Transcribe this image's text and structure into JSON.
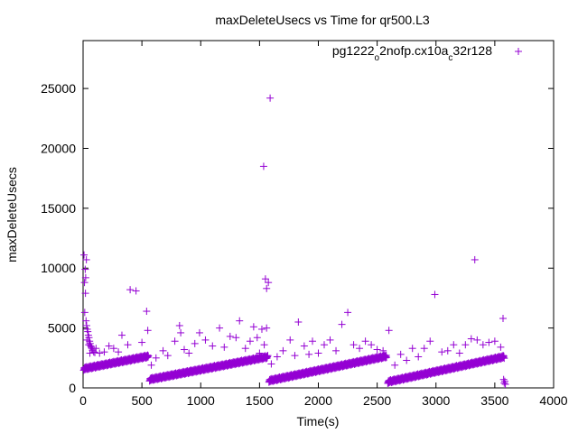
{
  "chart_data": {
    "type": "scatter",
    "title": "maxDeleteUsecs vs Time for qr500.L3",
    "xlabel": "Time(s)",
    "ylabel": "maxDeleteUsecs",
    "xlim": [
      0,
      4000
    ],
    "ylim": [
      0,
      29000
    ],
    "x_ticks": [
      0,
      500,
      1000,
      1500,
      2000,
      2500,
      3000,
      3500,
      4000
    ],
    "y_ticks": [
      0,
      5000,
      10000,
      15000,
      20000,
      25000
    ],
    "grid": false,
    "legend_position": "top-right",
    "legend": {
      "parts": [
        {
          "text": "pg1222",
          "sub": false
        },
        {
          "text": "o",
          "sub": true
        },
        {
          "text": "2nofp.cx10a",
          "sub": false
        },
        {
          "text": "c",
          "sub": true
        },
        {
          "text": "32r128",
          "sub": false
        }
      ]
    },
    "marker_color": "#9400d3",
    "series": [
      {
        "segments": [
          {
            "start": 5,
            "end": 555,
            "y_start": 1600,
            "y_end": 2650
          },
          {
            "start": 565,
            "end": 1570,
            "y_start": 700,
            "y_end": 2600
          },
          {
            "start": 1580,
            "end": 2580,
            "y_start": 600,
            "y_end": 2650
          },
          {
            "start": 2590,
            "end": 3580,
            "y_start": 500,
            "y_end": 2600
          }
        ],
        "points": [
          [
            8,
            11100
          ],
          [
            18,
            9900
          ],
          [
            28,
            10700
          ],
          [
            12,
            8800
          ],
          [
            22,
            9200
          ],
          [
            20,
            7900
          ],
          [
            14,
            6300
          ],
          [
            25,
            5600
          ],
          [
            30,
            5200
          ],
          [
            35,
            4900
          ],
          [
            40,
            4700
          ],
          [
            45,
            4400
          ],
          [
            50,
            4200
          ],
          [
            55,
            3900
          ],
          [
            60,
            3700
          ],
          [
            65,
            3500
          ],
          [
            70,
            3400
          ],
          [
            75,
            3300
          ],
          [
            80,
            3150
          ],
          [
            90,
            3000
          ],
          [
            100,
            2950
          ],
          [
            33,
            4000
          ],
          [
            48,
            3600
          ],
          [
            58,
            2900
          ],
          [
            110,
            3300
          ],
          [
            140,
            2900
          ],
          [
            180,
            3000
          ],
          [
            220,
            3500
          ],
          [
            260,
            3300
          ],
          [
            300,
            3000
          ],
          [
            330,
            4400
          ],
          [
            380,
            3600
          ],
          [
            400,
            8200
          ],
          [
            450,
            8100
          ],
          [
            500,
            3800
          ],
          [
            540,
            6400
          ],
          [
            550,
            4800
          ],
          [
            580,
            1900
          ],
          [
            620,
            2500
          ],
          [
            680,
            3100
          ],
          [
            720,
            2700
          ],
          [
            780,
            3900
          ],
          [
            820,
            5200
          ],
          [
            830,
            4600
          ],
          [
            860,
            3200
          ],
          [
            900,
            2900
          ],
          [
            950,
            3700
          ],
          [
            990,
            4600
          ],
          [
            1040,
            4000
          ],
          [
            1100,
            3500
          ],
          [
            1160,
            5000
          ],
          [
            1200,
            3400
          ],
          [
            1250,
            4300
          ],
          [
            1300,
            4200
          ],
          [
            1330,
            5600
          ],
          [
            1380,
            3300
          ],
          [
            1420,
            3900
          ],
          [
            1450,
            5100
          ],
          [
            1480,
            4200
          ],
          [
            1500,
            2900
          ],
          [
            1535,
            18500
          ],
          [
            1550,
            9100
          ],
          [
            1560,
            8300
          ],
          [
            1575,
            8800
          ],
          [
            1590,
            24200
          ],
          [
            1520,
            4900
          ],
          [
            1540,
            3600
          ],
          [
            1560,
            5000
          ],
          [
            1600,
            2000
          ],
          [
            1650,
            2600
          ],
          [
            1700,
            3100
          ],
          [
            1760,
            4000
          ],
          [
            1800,
            2700
          ],
          [
            1830,
            5500
          ],
          [
            1880,
            3500
          ],
          [
            1920,
            2800
          ],
          [
            1950,
            3900
          ],
          [
            2000,
            2900
          ],
          [
            2050,
            3600
          ],
          [
            2100,
            4000
          ],
          [
            2150,
            3100
          ],
          [
            2200,
            5300
          ],
          [
            2250,
            6300
          ],
          [
            2300,
            3600
          ],
          [
            2350,
            3300
          ],
          [
            2400,
            3900
          ],
          [
            2450,
            3600
          ],
          [
            2500,
            3200
          ],
          [
            2550,
            3100
          ],
          [
            2600,
            4800
          ],
          [
            2650,
            1900
          ],
          [
            2700,
            2800
          ],
          [
            2750,
            2300
          ],
          [
            2800,
            3300
          ],
          [
            2850,
            2600
          ],
          [
            2900,
            3300
          ],
          [
            2950,
            3900
          ],
          [
            2990,
            7800
          ],
          [
            3050,
            3000
          ],
          [
            3100,
            3100
          ],
          [
            3150,
            3600
          ],
          [
            3200,
            2900
          ],
          [
            3250,
            3600
          ],
          [
            3300,
            4100
          ],
          [
            3330,
            10700
          ],
          [
            3350,
            4000
          ],
          [
            3400,
            3600
          ],
          [
            3450,
            3800
          ],
          [
            3500,
            3900
          ],
          [
            3550,
            3400
          ],
          [
            3570,
            5800
          ],
          [
            3575,
            700
          ],
          [
            3580,
            400
          ],
          [
            3585,
            550
          ],
          [
            3590,
            300
          ]
        ]
      }
    ]
  }
}
